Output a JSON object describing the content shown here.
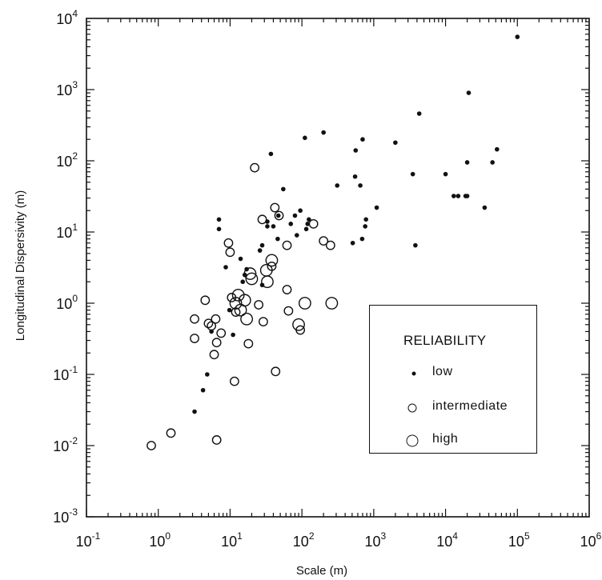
{
  "chart_data": {
    "type": "scatter",
    "title": "",
    "xlabel": "Scale (m)",
    "ylabel": "Longitudinal Dispersivity (m)",
    "xscale": "log",
    "yscale": "log",
    "xlim": [
      0.1,
      1000000
    ],
    "ylim": [
      0.001,
      10000
    ],
    "x_tick_labels": [
      "10-1",
      "100",
      "101",
      "102",
      "103",
      "104",
      "105",
      "106"
    ],
    "y_tick_labels": [
      "10-3",
      "10-2",
      "10-1",
      "100",
      "101",
      "102",
      "103",
      "104"
    ],
    "legend": {
      "title": "RELIABILITY",
      "placement": "lower-right",
      "entries": [
        "low",
        "intermediate",
        "high"
      ]
    },
    "series": [
      {
        "name": "low",
        "marker": "filled-dot",
        "points": [
          [
            3.2,
            0.03
          ],
          [
            4.2,
            0.06
          ],
          [
            4.8,
            0.1
          ],
          [
            5.5,
            0.4
          ],
          [
            7.0,
            11
          ],
          [
            7.0,
            15
          ],
          [
            8.7,
            3.2
          ],
          [
            9.8,
            0.8
          ],
          [
            11,
            0.36
          ],
          [
            14,
            4.2
          ],
          [
            15,
            2.0
          ],
          [
            16,
            2.5
          ],
          [
            17,
            3.0
          ],
          [
            26,
            5.5
          ],
          [
            28,
            6.5
          ],
          [
            28,
            1.8
          ],
          [
            33,
            14
          ],
          [
            33,
            12
          ],
          [
            37,
            125
          ],
          [
            40,
            12
          ],
          [
            46,
            8
          ],
          [
            47,
            17
          ],
          [
            55,
            40
          ],
          [
            70,
            13
          ],
          [
            80,
            17
          ],
          [
            85,
            9
          ],
          [
            95,
            20
          ],
          [
            110,
            210
          ],
          [
            115,
            11
          ],
          [
            120,
            13
          ],
          [
            125,
            15
          ],
          [
            200,
            250
          ],
          [
            310,
            45
          ],
          [
            510,
            7
          ],
          [
            550,
            60
          ],
          [
            560,
            140
          ],
          [
            650,
            45
          ],
          [
            690,
            8
          ],
          [
            700,
            200
          ],
          [
            760,
            12
          ],
          [
            780,
            15
          ],
          [
            1100,
            22
          ],
          [
            2000,
            180
          ],
          [
            3500,
            65
          ],
          [
            3800,
            6.5
          ],
          [
            4300,
            460
          ],
          [
            10000,
            65
          ],
          [
            13000,
            32
          ],
          [
            15000,
            32
          ],
          [
            19000,
            32
          ],
          [
            20000,
            32
          ],
          [
            20000,
            95
          ],
          [
            21000,
            900
          ],
          [
            35000,
            22
          ],
          [
            45000,
            95
          ],
          [
            52000,
            145
          ],
          [
            100000,
            5500
          ]
        ]
      },
      {
        "name": "intermediate",
        "marker": "small-circle",
        "points": [
          [
            0.8,
            0.01
          ],
          [
            1.5,
            0.015
          ],
          [
            3.2,
            0.32
          ],
          [
            3.2,
            0.6
          ],
          [
            4.5,
            1.1
          ],
          [
            5.0,
            0.52
          ],
          [
            5.5,
            0.48
          ],
          [
            6.0,
            0.19
          ],
          [
            6.3,
            0.6
          ],
          [
            6.5,
            0.012
          ],
          [
            6.5,
            0.28
          ],
          [
            7.5,
            0.38
          ],
          [
            9.5,
            7
          ],
          [
            10,
            5.2
          ],
          [
            10.5,
            1.2
          ],
          [
            11.5,
            0.08
          ],
          [
            12,
            0.75
          ],
          [
            18,
            0.27
          ],
          [
            22,
            80
          ],
          [
            25,
            0.95
          ],
          [
            28,
            15
          ],
          [
            29,
            0.55
          ],
          [
            38,
            3.3
          ],
          [
            42,
            22
          ],
          [
            43,
            0.11
          ],
          [
            48,
            17
          ],
          [
            62,
            6.5
          ],
          [
            62,
            1.55
          ],
          [
            65,
            0.78
          ],
          [
            95,
            0.42
          ],
          [
            145,
            13
          ],
          [
            200,
            7.5
          ],
          [
            250,
            6.5
          ]
        ]
      },
      {
        "name": "high",
        "marker": "large-circle",
        "points": [
          [
            12,
            1.0
          ],
          [
            13,
            1.3
          ],
          [
            14,
            0.8
          ],
          [
            16,
            1.1
          ],
          [
            17,
            0.6
          ],
          [
            19,
            2.6
          ],
          [
            20,
            2.2
          ],
          [
            32,
            2.9
          ],
          [
            33,
            2.0
          ],
          [
            38,
            4.0
          ],
          [
            90,
            0.5
          ],
          [
            110,
            1.0
          ],
          [
            260,
            1.0
          ]
        ]
      }
    ]
  }
}
